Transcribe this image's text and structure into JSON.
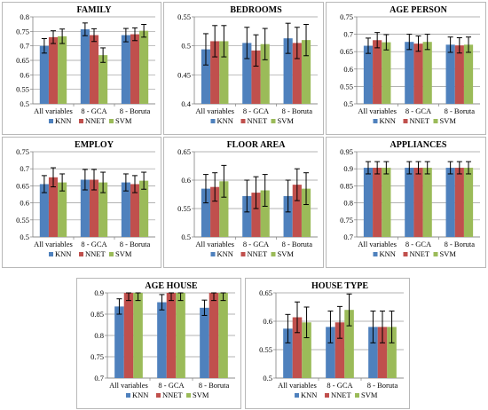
{
  "legend": {
    "series_colors": [
      "#4f81bd",
      "#c0504d",
      "#9bbb59"
    ]
  },
  "chart_data": [
    {
      "type": "bar",
      "title": "FAMILY",
      "categories": [
        "All variables",
        "8 - GCA",
        "8 - Boruta"
      ],
      "series": [
        {
          "name": "KNN",
          "values": [
            0.7,
            0.757,
            0.737
          ],
          "errors": [
            0.025,
            0.022,
            0.023
          ]
        },
        {
          "name": "NNET",
          "values": [
            0.73,
            0.737,
            0.74
          ],
          "errors": [
            0.022,
            0.022,
            0.022
          ]
        },
        {
          "name": "SVM",
          "values": [
            0.733,
            0.668,
            0.752
          ],
          "errors": [
            0.025,
            0.025,
            0.022
          ]
        }
      ],
      "ylim": [
        0.5,
        0.8
      ],
      "yticks": [
        "0.5",
        "0.55",
        "0.6",
        "0.65",
        "0.7",
        "0.75",
        "0.8"
      ],
      "grid": true,
      "legend": "bottom"
    },
    {
      "type": "bar",
      "title": "BEDROOMS",
      "categories": [
        "All variables",
        "8 - GCA",
        "8 - Boruta"
      ],
      "series": [
        {
          "name": "KNN",
          "values": [
            0.494,
            0.505,
            0.513
          ],
          "errors": [
            0.027,
            0.027,
            0.026
          ]
        },
        {
          "name": "NNET",
          "values": [
            0.508,
            0.492,
            0.505
          ],
          "errors": [
            0.027,
            0.027,
            0.027
          ]
        },
        {
          "name": "SVM",
          "values": [
            0.508,
            0.503,
            0.51
          ],
          "errors": [
            0.027,
            0.027,
            0.027
          ]
        }
      ],
      "ylim": [
        0.4,
        0.55
      ],
      "yticks": [
        "0.4",
        "0.45",
        "0.5",
        "0.55"
      ],
      "grid": true,
      "legend": "bottom"
    },
    {
      "type": "bar",
      "title": "AGE PERSON",
      "categories": [
        "All variables",
        "8 - GCA",
        "8 - Boruta"
      ],
      "series": [
        {
          "name": "KNN",
          "values": [
            0.667,
            0.678,
            0.67
          ],
          "errors": [
            0.022,
            0.022,
            0.022
          ]
        },
        {
          "name": "NNET",
          "values": [
            0.683,
            0.673,
            0.668
          ],
          "errors": [
            0.022,
            0.022,
            0.022
          ]
        },
        {
          "name": "SVM",
          "values": [
            0.677,
            0.678,
            0.67
          ],
          "errors": [
            0.022,
            0.022,
            0.022
          ]
        }
      ],
      "ylim": [
        0.5,
        0.75
      ],
      "yticks": [
        "0.5",
        "0.55",
        "0.6",
        "0.65",
        "0.7",
        "0.75"
      ],
      "grid": true,
      "legend": "bottom"
    },
    {
      "type": "bar",
      "title": "EMPLOY",
      "categories": [
        "All variables",
        "8 - GCA",
        "8 - Boruta"
      ],
      "series": [
        {
          "name": "KNN",
          "values": [
            0.655,
            0.668,
            0.66
          ],
          "errors": [
            0.025,
            0.03,
            0.025
          ]
        },
        {
          "name": "NNET",
          "values": [
            0.675,
            0.668,
            0.655
          ],
          "errors": [
            0.028,
            0.03,
            0.025
          ]
        },
        {
          "name": "SVM",
          "values": [
            0.66,
            0.66,
            0.665
          ],
          "errors": [
            0.025,
            0.03,
            0.025
          ]
        }
      ],
      "ylim": [
        0.5,
        0.75
      ],
      "yticks": [
        "0.5",
        "0.55",
        "0.6",
        "0.65",
        "0.7",
        "0.75"
      ],
      "grid": true,
      "legend": "bottom"
    },
    {
      "type": "bar",
      "title": "FLOOR AREA",
      "categories": [
        "All variables",
        "8 - GCA",
        "8 - Boruta"
      ],
      "series": [
        {
          "name": "KNN",
          "values": [
            0.585,
            0.572,
            0.572
          ],
          "errors": [
            0.025,
            0.028,
            0.028
          ]
        },
        {
          "name": "NNET",
          "values": [
            0.588,
            0.578,
            0.592
          ],
          "errors": [
            0.025,
            0.028,
            0.028
          ]
        },
        {
          "name": "SVM",
          "values": [
            0.598,
            0.582,
            0.585
          ],
          "errors": [
            0.028,
            0.028,
            0.028
          ]
        }
      ],
      "ylim": [
        0.5,
        0.65
      ],
      "yticks": [
        "0.5",
        "0.55",
        "0.6",
        "0.65"
      ],
      "grid": true,
      "legend": "bottom"
    },
    {
      "type": "bar",
      "title": "APPLIANCES",
      "categories": [
        "All variables",
        "8 - GCA",
        "8 - Boruta"
      ],
      "series": [
        {
          "name": "KNN",
          "values": [
            0.903,
            0.903,
            0.903
          ],
          "errors": [
            0.018,
            0.018,
            0.018
          ]
        },
        {
          "name": "NNET",
          "values": [
            0.903,
            0.903,
            0.903
          ],
          "errors": [
            0.018,
            0.018,
            0.018
          ]
        },
        {
          "name": "SVM",
          "values": [
            0.903,
            0.903,
            0.903
          ],
          "errors": [
            0.018,
            0.018,
            0.018
          ]
        }
      ],
      "ylim": [
        0.7,
        0.95
      ],
      "yticks": [
        "0.7",
        "0.75",
        "0.8",
        "0.85",
        "0.9",
        "0.95"
      ],
      "grid": true,
      "legend": "bottom"
    },
    {
      "type": "bar",
      "title": "AGE HOUSE",
      "categories": [
        "All variables",
        "8 - GCA",
        "8 - Boruta"
      ],
      "series": [
        {
          "name": "KNN",
          "values": [
            0.868,
            0.878,
            0.865
          ],
          "errors": [
            0.018,
            0.018,
            0.018
          ]
        },
        {
          "name": "NNET",
          "values": [
            0.9,
            0.9,
            0.9
          ],
          "errors": [
            0.018,
            0.018,
            0.018
          ]
        },
        {
          "name": "SVM",
          "values": [
            0.9,
            0.9,
            0.9
          ],
          "errors": [
            0.018,
            0.018,
            0.018
          ]
        }
      ],
      "ylim": [
        0.7,
        0.9
      ],
      "yticks": [
        "0.7",
        "0.75",
        "0.8",
        "0.85",
        "0.9"
      ],
      "grid": true,
      "legend": "bottom"
    },
    {
      "type": "bar",
      "title": "HOUSE TYPE",
      "categories": [
        "All variables",
        "8 - GCA",
        "8 - Boruta"
      ],
      "series": [
        {
          "name": "KNN",
          "values": [
            0.587,
            0.59,
            0.59
          ],
          "errors": [
            0.025,
            0.028,
            0.028
          ]
        },
        {
          "name": "NNET",
          "values": [
            0.607,
            0.598,
            0.59
          ],
          "errors": [
            0.027,
            0.028,
            0.028
          ]
        },
        {
          "name": "SVM",
          "values": [
            0.598,
            0.62,
            0.59
          ],
          "errors": [
            0.027,
            0.028,
            0.028
          ]
        }
      ],
      "ylim": [
        0.5,
        0.65
      ],
      "yticks": [
        "0.5",
        "0.55",
        "0.6",
        "0.65"
      ],
      "grid": true,
      "legend": "bottom"
    }
  ]
}
